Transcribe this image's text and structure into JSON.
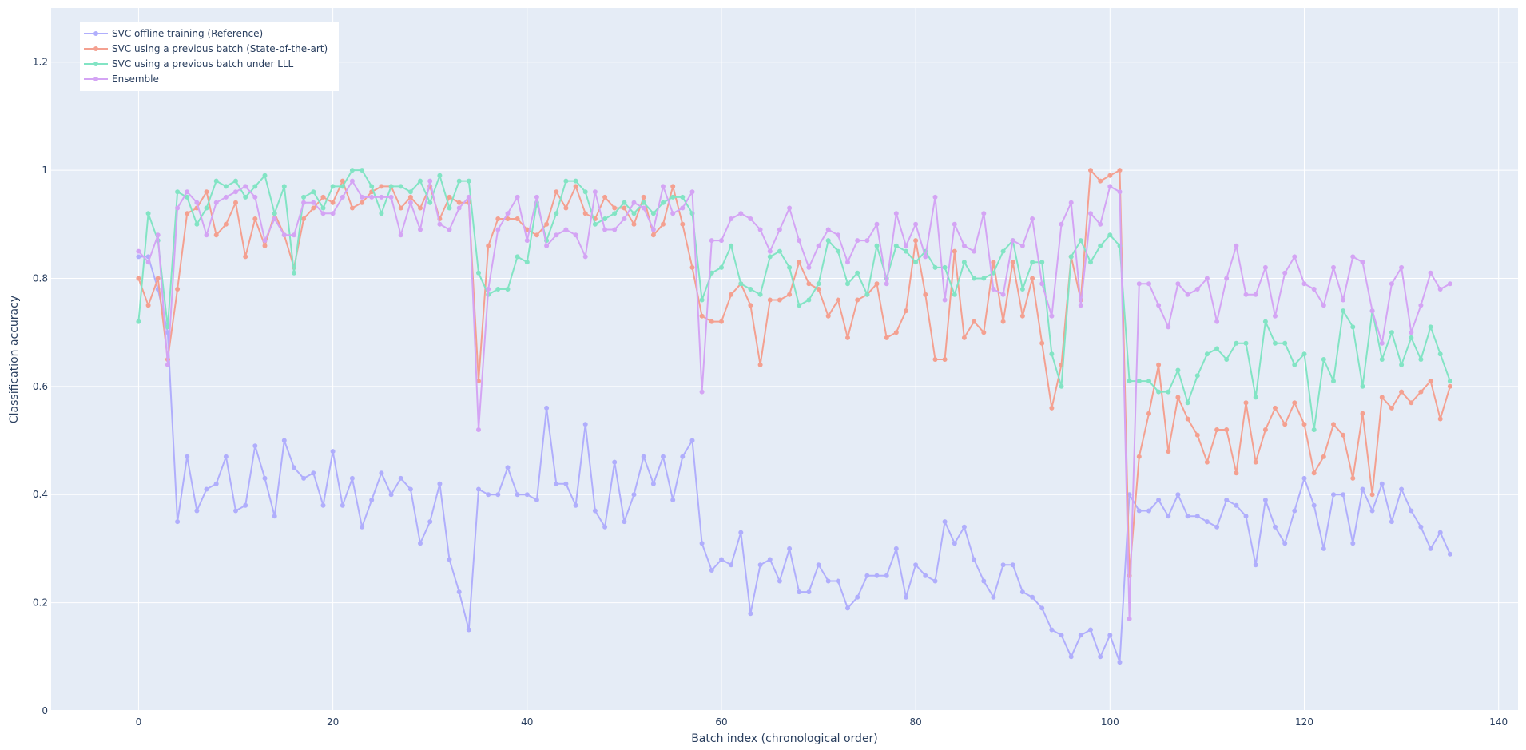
{
  "chart_data": {
    "type": "line",
    "xlabel": "Batch index (chronological order)",
    "ylabel": "Classification accuracy",
    "xlim": [
      -9,
      142
    ],
    "ylim": [
      0,
      1.3
    ],
    "xticks": [
      0,
      20,
      40,
      60,
      80,
      100,
      120,
      140
    ],
    "xtick_labels": [
      "0",
      "20",
      "40",
      "60",
      "80",
      "100",
      "120",
      "140"
    ],
    "yticks": [
      0,
      0.2,
      0.4,
      0.6,
      0.8,
      1,
      1.2
    ],
    "ytick_labels": [
      "0",
      "0.2",
      "0.4",
      "0.6",
      "0.8",
      "1",
      "1.2"
    ],
    "grid": true,
    "legend_position": "top-left",
    "background": "#e5ecf6",
    "x": [
      0,
      1,
      2,
      3,
      4,
      5,
      6,
      7,
      8,
      9,
      10,
      11,
      12,
      13,
      14,
      15,
      16,
      17,
      18,
      19,
      20,
      21,
      22,
      23,
      24,
      25,
      26,
      27,
      28,
      29,
      30,
      31,
      32,
      33,
      34,
      35,
      36,
      37,
      38,
      39,
      40,
      41,
      42,
      43,
      44,
      45,
      46,
      47,
      48,
      49,
      50,
      51,
      52,
      53,
      54,
      55,
      56,
      57,
      58,
      59,
      60,
      61,
      62,
      63,
      64,
      65,
      66,
      67,
      68,
      69,
      70,
      71,
      72,
      73,
      74,
      75,
      76,
      77,
      78,
      79,
      80,
      81,
      82,
      83,
      84,
      85,
      86,
      87,
      88,
      89,
      90,
      91,
      92,
      93,
      94,
      95,
      96,
      97,
      98,
      99,
      100,
      101,
      102,
      103,
      104,
      105,
      106,
      107,
      108,
      109,
      110,
      111,
      112,
      113,
      114,
      115,
      116,
      117,
      118,
      119,
      120,
      121,
      122,
      123,
      124,
      125,
      126,
      127,
      128,
      129,
      130,
      131,
      132,
      133,
      134,
      135
    ],
    "series": [
      {
        "name": "SVC offline training (Reference)",
        "color": "#b0aefc",
        "values": [
          0.84,
          0.84,
          0.78,
          0.7,
          0.35,
          0.47,
          0.37,
          0.41,
          0.42,
          0.47,
          0.37,
          0.38,
          0.49,
          0.43,
          0.36,
          0.5,
          0.45,
          0.43,
          0.44,
          0.38,
          0.48,
          0.38,
          0.43,
          0.34,
          0.39,
          0.44,
          0.4,
          0.43,
          0.41,
          0.31,
          0.35,
          0.42,
          0.28,
          0.22,
          0.15,
          0.41,
          0.4,
          0.4,
          0.45,
          0.4,
          0.4,
          0.39,
          0.56,
          0.42,
          0.42,
          0.38,
          0.53,
          0.37,
          0.34,
          0.46,
          0.35,
          0.4,
          0.47,
          0.42,
          0.47,
          0.39,
          0.47,
          0.5,
          0.31,
          0.26,
          0.28,
          0.27,
          0.33,
          0.18,
          0.27,
          0.28,
          0.24,
          0.3,
          0.22,
          0.22,
          0.27,
          0.24,
          0.24,
          0.19,
          0.21,
          0.25,
          0.25,
          0.25,
          0.3,
          0.21,
          0.27,
          0.25,
          0.24,
          0.35,
          0.31,
          0.34,
          0.28,
          0.24,
          0.21,
          0.27,
          0.27,
          0.22,
          0.21,
          0.19,
          0.15,
          0.14,
          0.1,
          0.14,
          0.15,
          0.1,
          0.14,
          0.09,
          0.4,
          0.37,
          0.37,
          0.39,
          0.36,
          0.4,
          0.36,
          0.36,
          0.35,
          0.34,
          0.39,
          0.38,
          0.36,
          0.27,
          0.39,
          0.34,
          0.31,
          0.37,
          0.43,
          0.38,
          0.3,
          0.4,
          0.4,
          0.31,
          0.41,
          0.37,
          0.42,
          0.35,
          0.41,
          0.37,
          0.34,
          0.3,
          0.33,
          0.29
        ]
      },
      {
        "name": "SVC using a previous batch (State-of-the-art)",
        "color": "#f4a090",
        "values": [
          0.8,
          0.75,
          0.8,
          0.65,
          0.78,
          0.92,
          0.93,
          0.96,
          0.88,
          0.9,
          0.94,
          0.84,
          0.91,
          0.86,
          0.92,
          0.88,
          0.82,
          0.91,
          0.93,
          0.95,
          0.94,
          0.98,
          0.93,
          0.94,
          0.96,
          0.97,
          0.97,
          0.93,
          0.95,
          0.93,
          0.97,
          0.91,
          0.95,
          0.94,
          0.94,
          0.61,
          0.86,
          0.91,
          0.91,
          0.91,
          0.89,
          0.88,
          0.9,
          0.96,
          0.93,
          0.97,
          0.92,
          0.91,
          0.95,
          0.93,
          0.93,
          0.9,
          0.95,
          0.88,
          0.9,
          0.97,
          0.9,
          0.82,
          0.73,
          0.72,
          0.72,
          0.77,
          0.79,
          0.75,
          0.64,
          0.76,
          0.76,
          0.77,
          0.83,
          0.79,
          0.78,
          0.73,
          0.76,
          0.69,
          0.76,
          0.77,
          0.79,
          0.69,
          0.7,
          0.74,
          0.87,
          0.77,
          0.65,
          0.65,
          0.85,
          0.69,
          0.72,
          0.7,
          0.83,
          0.72,
          0.83,
          0.73,
          0.8,
          0.68,
          0.56,
          0.64,
          0.84,
          0.76,
          1.0,
          0.98,
          0.99,
          1.0,
          0.25,
          0.47,
          0.55,
          0.64,
          0.48,
          0.58,
          0.54,
          0.51,
          0.46,
          0.52,
          0.52,
          0.44,
          0.57,
          0.46,
          0.52,
          0.56,
          0.53,
          0.57,
          0.53,
          0.44,
          0.47,
          0.53,
          0.51,
          0.43,
          0.55,
          0.4,
          0.58,
          0.56,
          0.59,
          0.57,
          0.59,
          0.61,
          0.54,
          0.6
        ]
      },
      {
        "name": "SVC using a previous batch under LLL",
        "color": "#82e4c4",
        "values": [
          0.72,
          0.92,
          0.87,
          0.71,
          0.96,
          0.95,
          0.9,
          0.93,
          0.98,
          0.97,
          0.98,
          0.95,
          0.97,
          0.99,
          0.92,
          0.97,
          0.81,
          0.95,
          0.96,
          0.93,
          0.97,
          0.97,
          1.0,
          1.0,
          0.97,
          0.92,
          0.97,
          0.97,
          0.96,
          0.98,
          0.94,
          0.99,
          0.93,
          0.98,
          0.98,
          0.81,
          0.77,
          0.78,
          0.78,
          0.84,
          0.83,
          0.94,
          0.87,
          0.92,
          0.98,
          0.98,
          0.96,
          0.9,
          0.91,
          0.92,
          0.94,
          0.92,
          0.94,
          0.92,
          0.94,
          0.95,
          0.95,
          0.92,
          0.76,
          0.81,
          0.82,
          0.86,
          0.79,
          0.78,
          0.77,
          0.84,
          0.85,
          0.82,
          0.75,
          0.76,
          0.79,
          0.87,
          0.85,
          0.79,
          0.81,
          0.77,
          0.86,
          0.8,
          0.86,
          0.85,
          0.83,
          0.85,
          0.82,
          0.82,
          0.77,
          0.83,
          0.8,
          0.8,
          0.81,
          0.85,
          0.87,
          0.78,
          0.83,
          0.83,
          0.66,
          0.6,
          0.84,
          0.87,
          0.83,
          0.86,
          0.88,
          0.86,
          0.61,
          0.61,
          0.61,
          0.59,
          0.59,
          0.63,
          0.57,
          0.62,
          0.66,
          0.67,
          0.65,
          0.68,
          0.68,
          0.58,
          0.72,
          0.68,
          0.68,
          0.64,
          0.66,
          0.52,
          0.65,
          0.61,
          0.74,
          0.71,
          0.6,
          0.74,
          0.65,
          0.7,
          0.64,
          0.69,
          0.65,
          0.71,
          0.66,
          0.61
        ]
      },
      {
        "name": "Ensemble",
        "color": "#d4a4f4",
        "values": [
          0.85,
          0.83,
          0.88,
          0.64,
          0.93,
          0.96,
          0.94,
          0.88,
          0.94,
          0.95,
          0.96,
          0.97,
          0.95,
          0.87,
          0.91,
          0.88,
          0.88,
          0.94,
          0.94,
          0.92,
          0.92,
          0.95,
          0.98,
          0.95,
          0.95,
          0.95,
          0.95,
          0.88,
          0.94,
          0.89,
          0.98,
          0.9,
          0.89,
          0.93,
          0.95,
          0.52,
          0.78,
          0.89,
          0.92,
          0.95,
          0.87,
          0.95,
          0.86,
          0.88,
          0.89,
          0.88,
          0.84,
          0.96,
          0.89,
          0.89,
          0.91,
          0.94,
          0.93,
          0.89,
          0.97,
          0.92,
          0.93,
          0.96,
          0.59,
          0.87,
          0.87,
          0.91,
          0.92,
          0.91,
          0.89,
          0.85,
          0.89,
          0.93,
          0.87,
          0.82,
          0.86,
          0.89,
          0.88,
          0.83,
          0.87,
          0.87,
          0.9,
          0.79,
          0.92,
          0.86,
          0.9,
          0.84,
          0.95,
          0.76,
          0.9,
          0.86,
          0.85,
          0.92,
          0.78,
          0.77,
          0.87,
          0.86,
          0.91,
          0.79,
          0.73,
          0.9,
          0.94,
          0.75,
          0.92,
          0.9,
          0.97,
          0.96,
          0.17,
          0.79,
          0.79,
          0.75,
          0.71,
          0.79,
          0.77,
          0.78,
          0.8,
          0.72,
          0.8,
          0.86,
          0.77,
          0.77,
          0.82,
          0.73,
          0.81,
          0.84,
          0.79,
          0.78,
          0.75,
          0.82,
          0.76,
          0.84,
          0.83,
          0.74,
          0.68,
          0.79,
          0.82,
          0.7,
          0.75,
          0.81,
          0.78,
          0.79
        ]
      }
    ]
  }
}
